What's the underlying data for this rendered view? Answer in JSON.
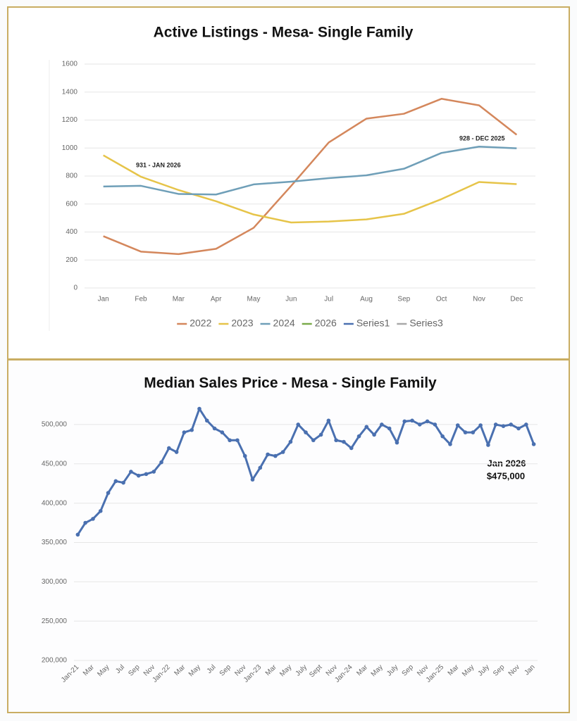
{
  "chart_data": [
    {
      "type": "line",
      "title": "Active Listings - Mesa-  Single Family",
      "categories": [
        "Jan",
        "Feb",
        "Mar",
        "Apr",
        "May",
        "Jun",
        "Jul",
        "Aug",
        "Sep",
        "Oct",
        "Nov",
        "Dec"
      ],
      "series": [
        {
          "name": "2022",
          "color": "#d4875c",
          "values": [
            370,
            260,
            242,
            280,
            430,
            730,
            1040,
            1210,
            1245,
            1352,
            1305,
            1095
          ]
        },
        {
          "name": "2023",
          "color": "#e6c449",
          "values": [
            948,
            795,
            700,
            620,
            525,
            468,
            475,
            490,
            530,
            635,
            757,
            742
          ]
        },
        {
          "name": "2024",
          "color": "#6f9fb8",
          "values": [
            725,
            730,
            672,
            668,
            740,
            760,
            785,
            805,
            852,
            965,
            1010,
            998
          ]
        },
        {
          "name": "2026",
          "color": "#7aab4a",
          "values": [
            null,
            null,
            null,
            null,
            null,
            null,
            null,
            null,
            null,
            null,
            null,
            null
          ]
        },
        {
          "name": "Series1",
          "color": "#4a70b0",
          "values": [
            null,
            null,
            null,
            null,
            null,
            null,
            null,
            null,
            null,
            null,
            null,
            null
          ]
        },
        {
          "name": "Series3",
          "color": "#a8a8a8",
          "values": [
            null,
            null,
            null,
            null,
            null,
            null,
            null,
            null,
            null,
            null,
            null,
            null
          ]
        }
      ],
      "ylim": [
        0,
        1600
      ],
      "yticks": [
        0,
        200,
        400,
        600,
        800,
        1000,
        1200,
        1400,
        1600
      ],
      "grid": true,
      "legend": "bottom",
      "annotations": [
        "931 - JAN 2026",
        "928 - DEC 2025"
      ]
    },
    {
      "type": "line",
      "title": "Median Sales Price -  Mesa - Single Family",
      "categories": [
        "Jan-21",
        null,
        "Mar",
        null,
        "May",
        null,
        "Jul",
        null,
        "Sep",
        null,
        "Nov",
        null,
        "Jan-22",
        null,
        "Mar",
        null,
        "May",
        null,
        "Jul",
        null,
        "Sep",
        null,
        "Nov",
        null,
        "Jan-23",
        null,
        "Mar",
        null,
        "May",
        null,
        "July",
        null,
        "Sept",
        null,
        "Nov",
        null,
        "Jan-24",
        null,
        "Mar",
        null,
        "May",
        null,
        "July",
        null,
        "Sep",
        null,
        "Nov",
        null,
        "Jan-25",
        null,
        "Mar",
        null,
        "May",
        null,
        "July",
        null,
        "Sep",
        null,
        "Nov",
        null,
        "Jan"
      ],
      "series": [
        {
          "name": "Median Sales Price",
          "color": "#4a70b0",
          "values": [
            360000,
            375000,
            380000,
            390000,
            413000,
            428000,
            426000,
            440000,
            435000,
            437000,
            440000,
            452000,
            470000,
            465000,
            490000,
            493000,
            520000,
            505000,
            495000,
            490000,
            480000,
            480000,
            460000,
            430000,
            445000,
            462000,
            460000,
            465000,
            478000,
            500000,
            490000,
            480000,
            487000,
            505000,
            480000,
            478000,
            470000,
            485000,
            497000,
            487000,
            500000,
            495000,
            477000,
            504000,
            505000,
            500000,
            504000,
            500000,
            485000,
            475000,
            499000,
            490000,
            490000,
            499000,
            474000,
            500000,
            498000,
            500000,
            495000,
            500000,
            475000
          ]
        }
      ],
      "ylim": [
        200000,
        525000
      ],
      "yticks": [
        {
          "value": 200000,
          "label": "200,000"
        },
        {
          "value": 250000,
          "label": "250,000"
        },
        {
          "value": 300000,
          "label": "300,000"
        },
        {
          "value": 350000,
          "label": "350,000"
        },
        {
          "value": 400000,
          "label": "400,000"
        },
        {
          "value": 450000,
          "label": "450,000"
        },
        {
          "value": 500000,
          "label": "500,000"
        }
      ],
      "grid": true,
      "markers": true,
      "annotations": [
        "Jan 2026",
        "$475,000"
      ]
    }
  ]
}
